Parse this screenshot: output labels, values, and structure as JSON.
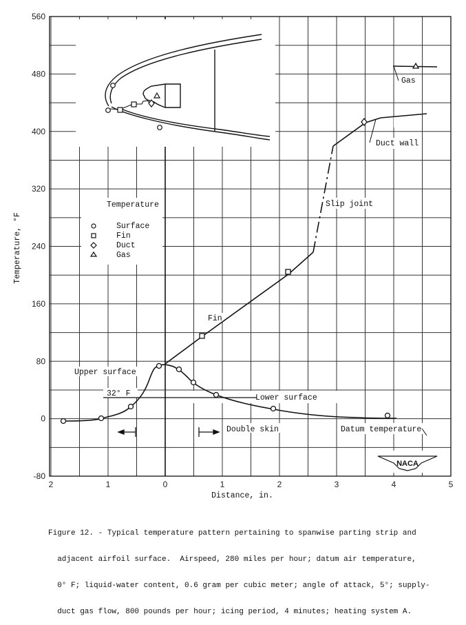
{
  "figure": {
    "caption_lines": [
      "Figure 12. - Typical temperature pattern pertaining to spanwise parting strip and",
      "  adjacent airfoil surface.  Airspeed, 280 miles per hour; datum air temperature,",
      "  0° F; liquid-water content, 0.6 gram per cubic meter; angle of attack, 5°; supply-",
      "  duct gas flow, 800 pounds per hour; icing period, 4 minutes; heating system A."
    ],
    "logo_text": "NACA"
  },
  "chart_data": {
    "type": "line",
    "title": "Typical temperature pattern pertaining to spanwise parting strip and adjacent airfoil surface",
    "xlabel": "Distance, in.",
    "ylabel": "Temperature, °F",
    "x_tick_labels": [
      "2",
      "1",
      "0",
      "1",
      "2",
      "3",
      "4",
      "5"
    ],
    "x_tick_values": [
      -2,
      -1,
      0,
      1,
      2,
      3,
      4,
      5
    ],
    "y_tick_labels": [
      "560",
      "480",
      "400",
      "320",
      "240",
      "160",
      "80",
      "0",
      "-80"
    ],
    "y_tick_values": [
      560,
      480,
      400,
      320,
      240,
      160,
      80,
      0,
      -80
    ],
    "xlim": [
      -2,
      5
    ],
    "ylim": [
      -80,
      560
    ],
    "grid": true,
    "grid_spacing": {
      "x": 0.5,
      "y": 40
    },
    "legend": {
      "title": "Temperature",
      "position": "upper-left",
      "entries": [
        {
          "marker": "circle",
          "symbol": "○",
          "label": "Surface"
        },
        {
          "marker": "square",
          "symbol": "□",
          "label": "Fin"
        },
        {
          "marker": "diamond",
          "symbol": "◇",
          "label": "Duct"
        },
        {
          "marker": "triangle",
          "symbol": "△",
          "label": "Gas"
        }
      ]
    },
    "series": [
      {
        "name": "Surface",
        "marker": "circle",
        "x": [
          -1.8,
          -1.15,
          -0.6,
          -0.12,
          0.25,
          0.5,
          0.9,
          1.9,
          3.9
        ],
        "y": [
          0,
          3,
          20,
          75,
          70,
          52,
          35,
          17,
          6
        ],
        "curve_extends_to": 4.05
      },
      {
        "name": "Fin",
        "marker": "square",
        "x": [
          0,
          0.65,
          2.15,
          2.6
        ],
        "y": [
          80,
          118,
          205,
          235
        ],
        "note": "straight line from 0 in. to slip joint"
      },
      {
        "name": "Slip joint",
        "style": "dash-dot",
        "x": [
          2.6,
          2.95
        ],
        "y": [
          235,
          382
        ]
      },
      {
        "name": "Duct wall",
        "marker": "diamond",
        "x": [
          2.95,
          3.5,
          3.75,
          4.55
        ],
        "y": [
          382,
          413,
          420,
          426
        ]
      },
      {
        "name": "Gas",
        "marker": "triangle",
        "x": [
          4.1,
          4.35,
          4.75
        ],
        "y": [
          493,
          493,
          493
        ]
      }
    ],
    "reference_lines": [
      {
        "label": "32° F",
        "y": 32,
        "x_range": [
          -0.5,
          1.6
        ]
      },
      {
        "label": "Datum temperature",
        "y": 0
      }
    ],
    "annotations": [
      {
        "text": "Upper surface",
        "x": -1.6,
        "y": 66
      },
      {
        "text": "Lower surface",
        "x": 1.55,
        "y": 33
      },
      {
        "text": "Fin",
        "x": 1.15,
        "y": 140
      },
      {
        "text": "Slip joint",
        "x": 2.85,
        "y": 312
      },
      {
        "text": "Duct wall",
        "x": 3.55,
        "y": 388
      },
      {
        "text": "Gas",
        "x": 4.2,
        "y": 468
      },
      {
        "text": "Double skin",
        "x": 1.05,
        "y": -12,
        "arrow": "right from 0.6"
      },
      {
        "text": "Datum temperature",
        "x": 3.05,
        "y": -12
      },
      {
        "text": "32° F",
        "x": -1.05,
        "y": 37
      }
    ],
    "double_skin_arrows": [
      {
        "direction": "left",
        "from": -0.5,
        "to": -0.8
      },
      {
        "direction": "right",
        "from": 0.6,
        "to": 0.95
      }
    ],
    "inset": "airfoil leading-edge cross-section sketch showing surface (circles), fin (squares), duct (diamond) and gas (triangle) measurement locations"
  }
}
